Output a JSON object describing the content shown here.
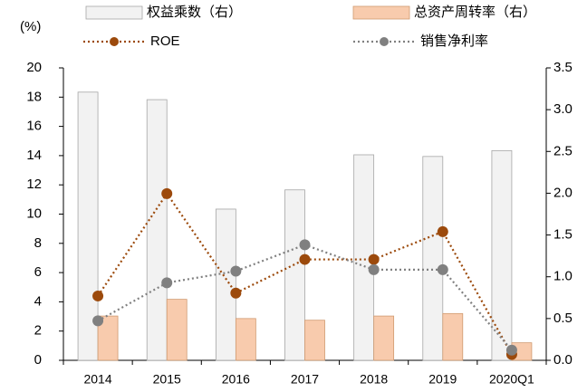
{
  "chart_data": {
    "type": "bar",
    "ylabel": "(%)",
    "categories": [
      "2014",
      "2015",
      "2016",
      "2017",
      "2018",
      "2019",
      "2020Q1"
    ],
    "series": [
      {
        "name": "权益乘数（右）",
        "type": "bar",
        "axis": "y2",
        "color": "#f2f2f2",
        "values": [
          3.21,
          3.12,
          1.81,
          2.04,
          2.46,
          2.44,
          2.51
        ]
      },
      {
        "name": "总资产周转率（右）",
        "type": "bar",
        "axis": "y2",
        "color": "#f8cbad",
        "values": [
          0.53,
          0.73,
          0.5,
          0.48,
          0.53,
          0.56,
          0.21
        ]
      },
      {
        "name": "ROE",
        "type": "line",
        "color": "#9c4a0c",
        "values": [
          4.4,
          11.4,
          4.6,
          6.9,
          6.9,
          8.8,
          0.4
        ]
      },
      {
        "name": "销售净利率",
        "type": "line",
        "color": "#808080",
        "values": [
          2.7,
          5.3,
          6.1,
          7.9,
          6.2,
          6.2,
          0.7
        ]
      }
    ],
    "ylim": [
      0,
      20
    ],
    "yticks": [
      0,
      2,
      4,
      6,
      8,
      10,
      12,
      14,
      16,
      18,
      20
    ],
    "y2lim": [
      0,
      3.5
    ],
    "y2ticks": [
      {
        "value": 0,
        "label": "0.0"
      },
      {
        "value": 0.5,
        "label": "0.5"
      },
      {
        "value": 1,
        "label": "1.0"
      },
      {
        "value": 1.5,
        "label": "1.5"
      },
      {
        "value": 2,
        "label": "2.0"
      },
      {
        "value": 2.5,
        "label": "2.5"
      },
      {
        "value": 3,
        "label": "3.0"
      },
      {
        "value": 3.5,
        "label": "3.5"
      }
    ]
  }
}
